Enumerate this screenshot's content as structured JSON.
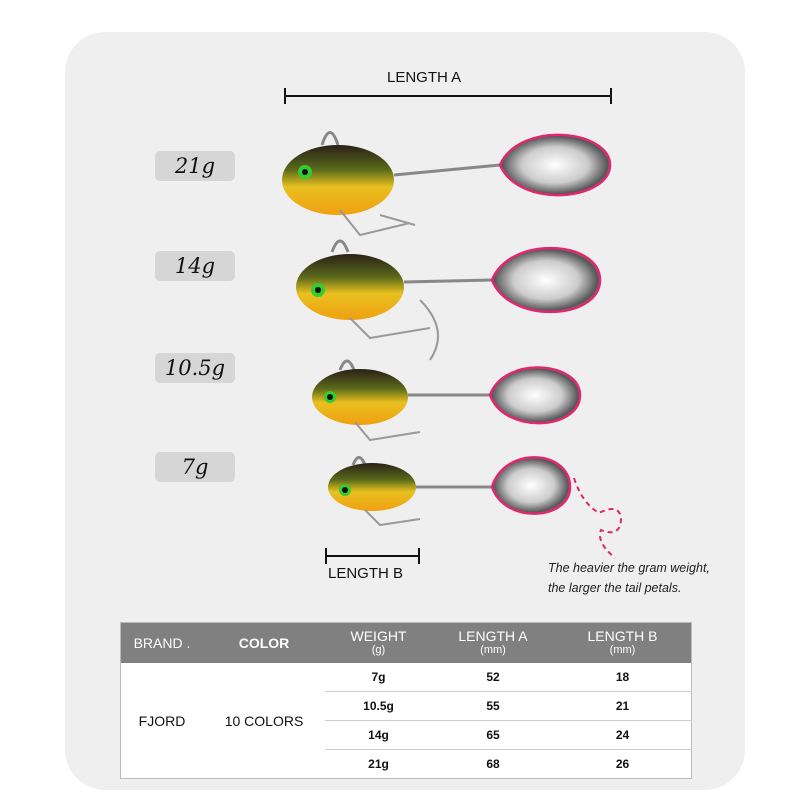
{
  "labels": {
    "length_a": "LENGTH A",
    "length_b": "LENGTH B",
    "weights": [
      "21g",
      "14g",
      "10.5g",
      "7g"
    ],
    "note_line1": "The heavier the gram weight,",
    "note_line2": "the larger the tail petals."
  },
  "colors": {
    "accent_pink": "#e0286e",
    "header_gray": "#808080",
    "card_bg": "#efefef"
  },
  "table": {
    "headers": {
      "brand": "BRAND .",
      "color": "COLOR",
      "weight": "WEIGHT",
      "weight_unit": "(g)",
      "length_a": "LENGTH A",
      "length_a_unit": "(mm)",
      "length_b": "LENGTH B",
      "length_b_unit": "(mm)"
    },
    "brand": "FJORD",
    "color": "10 COLORS",
    "rows": [
      {
        "weight": "7g",
        "length_a": "52",
        "length_b": "18"
      },
      {
        "weight": "10.5g",
        "length_a": "55",
        "length_b": "21"
      },
      {
        "weight": "14g",
        "length_a": "65",
        "length_b": "24"
      },
      {
        "weight": "21g",
        "length_a": "68",
        "length_b": "26"
      }
    ]
  }
}
